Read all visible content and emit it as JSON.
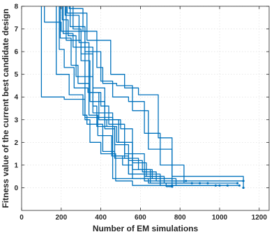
{
  "chart_data": {
    "type": "line",
    "xlabel": "Number of EM simulations",
    "ylabel": "Fitness value of the current best candidate design",
    "xlim": [
      0,
      1250
    ],
    "ylim": [
      -1,
      8
    ],
    "xticks": [
      0,
      200,
      400,
      600,
      800,
      1000,
      1200
    ],
    "yticks": [
      0,
      1,
      2,
      3,
      4,
      5,
      6,
      7,
      8
    ],
    "grid": true,
    "line_color": "#0072bd",
    "series": [
      {
        "x": [
          100,
          100,
          215,
          215,
          320,
          320,
          460,
          460,
          640,
          640,
          730,
          730,
          760
        ],
        "y": [
          8,
          4.0,
          4.0,
          3.9,
          3.9,
          3.1,
          3.1,
          0.4,
          0.4,
          0.2,
          0.2,
          0.05,
          0.05
        ]
      },
      {
        "x": [
          115,
          115,
          200,
          200,
          320,
          320,
          345,
          345,
          400,
          400,
          475,
          475,
          560,
          560,
          760
        ],
        "y": [
          8,
          7.3,
          7.3,
          6.9,
          6.9,
          3.0,
          3.0,
          2.0,
          2.0,
          1.5,
          1.5,
          0.3,
          0.3,
          0.1,
          0.1
        ]
      },
      {
        "x": [
          175,
          175,
          240,
          240,
          310,
          310,
          330,
          330,
          410,
          410,
          470,
          470,
          540,
          540,
          620,
          620,
          700,
          700,
          1000
        ],
        "y": [
          8,
          5.0,
          5.0,
          4.1,
          4.1,
          3.2,
          3.2,
          2.8,
          2.8,
          1.6,
          1.6,
          1.3,
          1.3,
          0.6,
          0.6,
          0.3,
          0.3,
          0.1,
          0.1
        ]
      },
      {
        "x": [
          190,
          190,
          215,
          215,
          265,
          265,
          335,
          335,
          390,
          390,
          430,
          430,
          470,
          470,
          510,
          510,
          560,
          560,
          780,
          780,
          1040
        ],
        "y": [
          8,
          6.1,
          6.1,
          5.3,
          5.3,
          4.4,
          4.4,
          4.2,
          4.2,
          3.0,
          3.0,
          2.7,
          2.7,
          1.4,
          1.4,
          1.0,
          1.0,
          0.4,
          0.4,
          0.1,
          0.1
        ]
      },
      {
        "x": [
          195,
          195,
          250,
          250,
          285,
          285,
          340,
          340,
          385,
          385,
          455,
          455,
          540,
          540,
          700,
          700,
          900
        ],
        "y": [
          8,
          6.6,
          6.6,
          5.4,
          5.4,
          4.6,
          4.6,
          3.2,
          3.2,
          2.3,
          2.3,
          1.4,
          1.4,
          0.6,
          0.6,
          0.2,
          0.2
        ]
      },
      {
        "x": [
          205,
          205,
          235,
          235,
          275,
          275,
          360,
          360,
          460,
          460,
          490,
          490,
          560,
          560,
          650,
          650,
          860
        ],
        "y": [
          8,
          7.4,
          7.4,
          6.7,
          6.7,
          4.9,
          4.9,
          3.3,
          3.3,
          3.0,
          3.0,
          2.0,
          2.0,
          0.8,
          0.8,
          0.2,
          0.2
        ]
      },
      {
        "x": [
          210,
          210,
          260,
          260,
          360,
          360,
          380,
          380,
          480,
          480,
          520,
          520,
          590,
          590,
          660,
          660,
          760,
          760,
          1100
        ],
        "y": [
          8,
          6.8,
          6.8,
          6.2,
          6.2,
          3.6,
          3.6,
          2.7,
          2.7,
          2.0,
          2.0,
          1.3,
          1.3,
          0.8,
          0.8,
          0.4,
          0.4,
          0.1,
          0.1
        ]
      },
      {
        "x": [
          220,
          220,
          290,
          290,
          340,
          340,
          400,
          400,
          440,
          440,
          520,
          520,
          620,
          620,
          720,
          720,
          940
        ],
        "y": [
          8,
          7.6,
          7.6,
          6.4,
          6.4,
          4.2,
          4.2,
          3.6,
          3.6,
          2.8,
          2.8,
          1.5,
          1.5,
          0.5,
          0.5,
          0.2,
          0.2
        ]
      },
      {
        "x": [
          225,
          225,
          300,
          300,
          360,
          360,
          420,
          420,
          500,
          500,
          560,
          560,
          630,
          630,
          700,
          700,
          980
        ],
        "y": [
          8,
          6.5,
          6.5,
          5.9,
          5.9,
          4.4,
          4.4,
          3.0,
          3.0,
          2.6,
          2.6,
          1.1,
          1.1,
          0.5,
          0.5,
          0.1,
          0.1
        ]
      },
      {
        "x": [
          230,
          230,
          330,
          330,
          450,
          450,
          520,
          520,
          590,
          590,
          690,
          690,
          760,
          760,
          1120
        ],
        "y": [
          8,
          7.7,
          7.7,
          6.5,
          6.5,
          5.0,
          5.0,
          4.4,
          4.4,
          4.1,
          4.1,
          2.2,
          2.2,
          0.3,
          0.3
        ]
      },
      {
        "x": [
          240,
          240,
          310,
          310,
          380,
          380,
          410,
          410,
          480,
          480,
          560,
          560,
          640,
          640,
          760,
          760,
          1120,
          1120
        ],
        "y": [
          8,
          7.9,
          7.9,
          6.9,
          6.9,
          5.3,
          5.3,
          4.6,
          4.6,
          4.5,
          4.5,
          3.4,
          3.4,
          1.7,
          1.7,
          0.5,
          0.5,
          0.0
        ]
      },
      {
        "x": [
          245,
          245,
          320,
          320,
          400,
          400,
          460,
          460,
          540,
          540,
          620,
          620,
          700,
          700,
          820,
          820,
          1090
        ],
        "y": [
          8,
          7.1,
          7.1,
          6.0,
          6.0,
          4.7,
          4.7,
          4.0,
          4.0,
          3.8,
          3.8,
          2.4,
          2.4,
          1.0,
          1.0,
          0.2,
          0.2
        ]
      },
      {
        "x": [
          260,
          260,
          300,
          300,
          345,
          345,
          420,
          420,
          470,
          470,
          540,
          540,
          610,
          610,
          680,
          680,
          830
        ],
        "y": [
          8,
          7.0,
          7.0,
          5.6,
          5.6,
          3.8,
          3.8,
          2.6,
          2.6,
          1.9,
          1.9,
          1.2,
          1.2,
          0.7,
          0.7,
          0.3,
          0.3
        ]
      }
    ]
  }
}
